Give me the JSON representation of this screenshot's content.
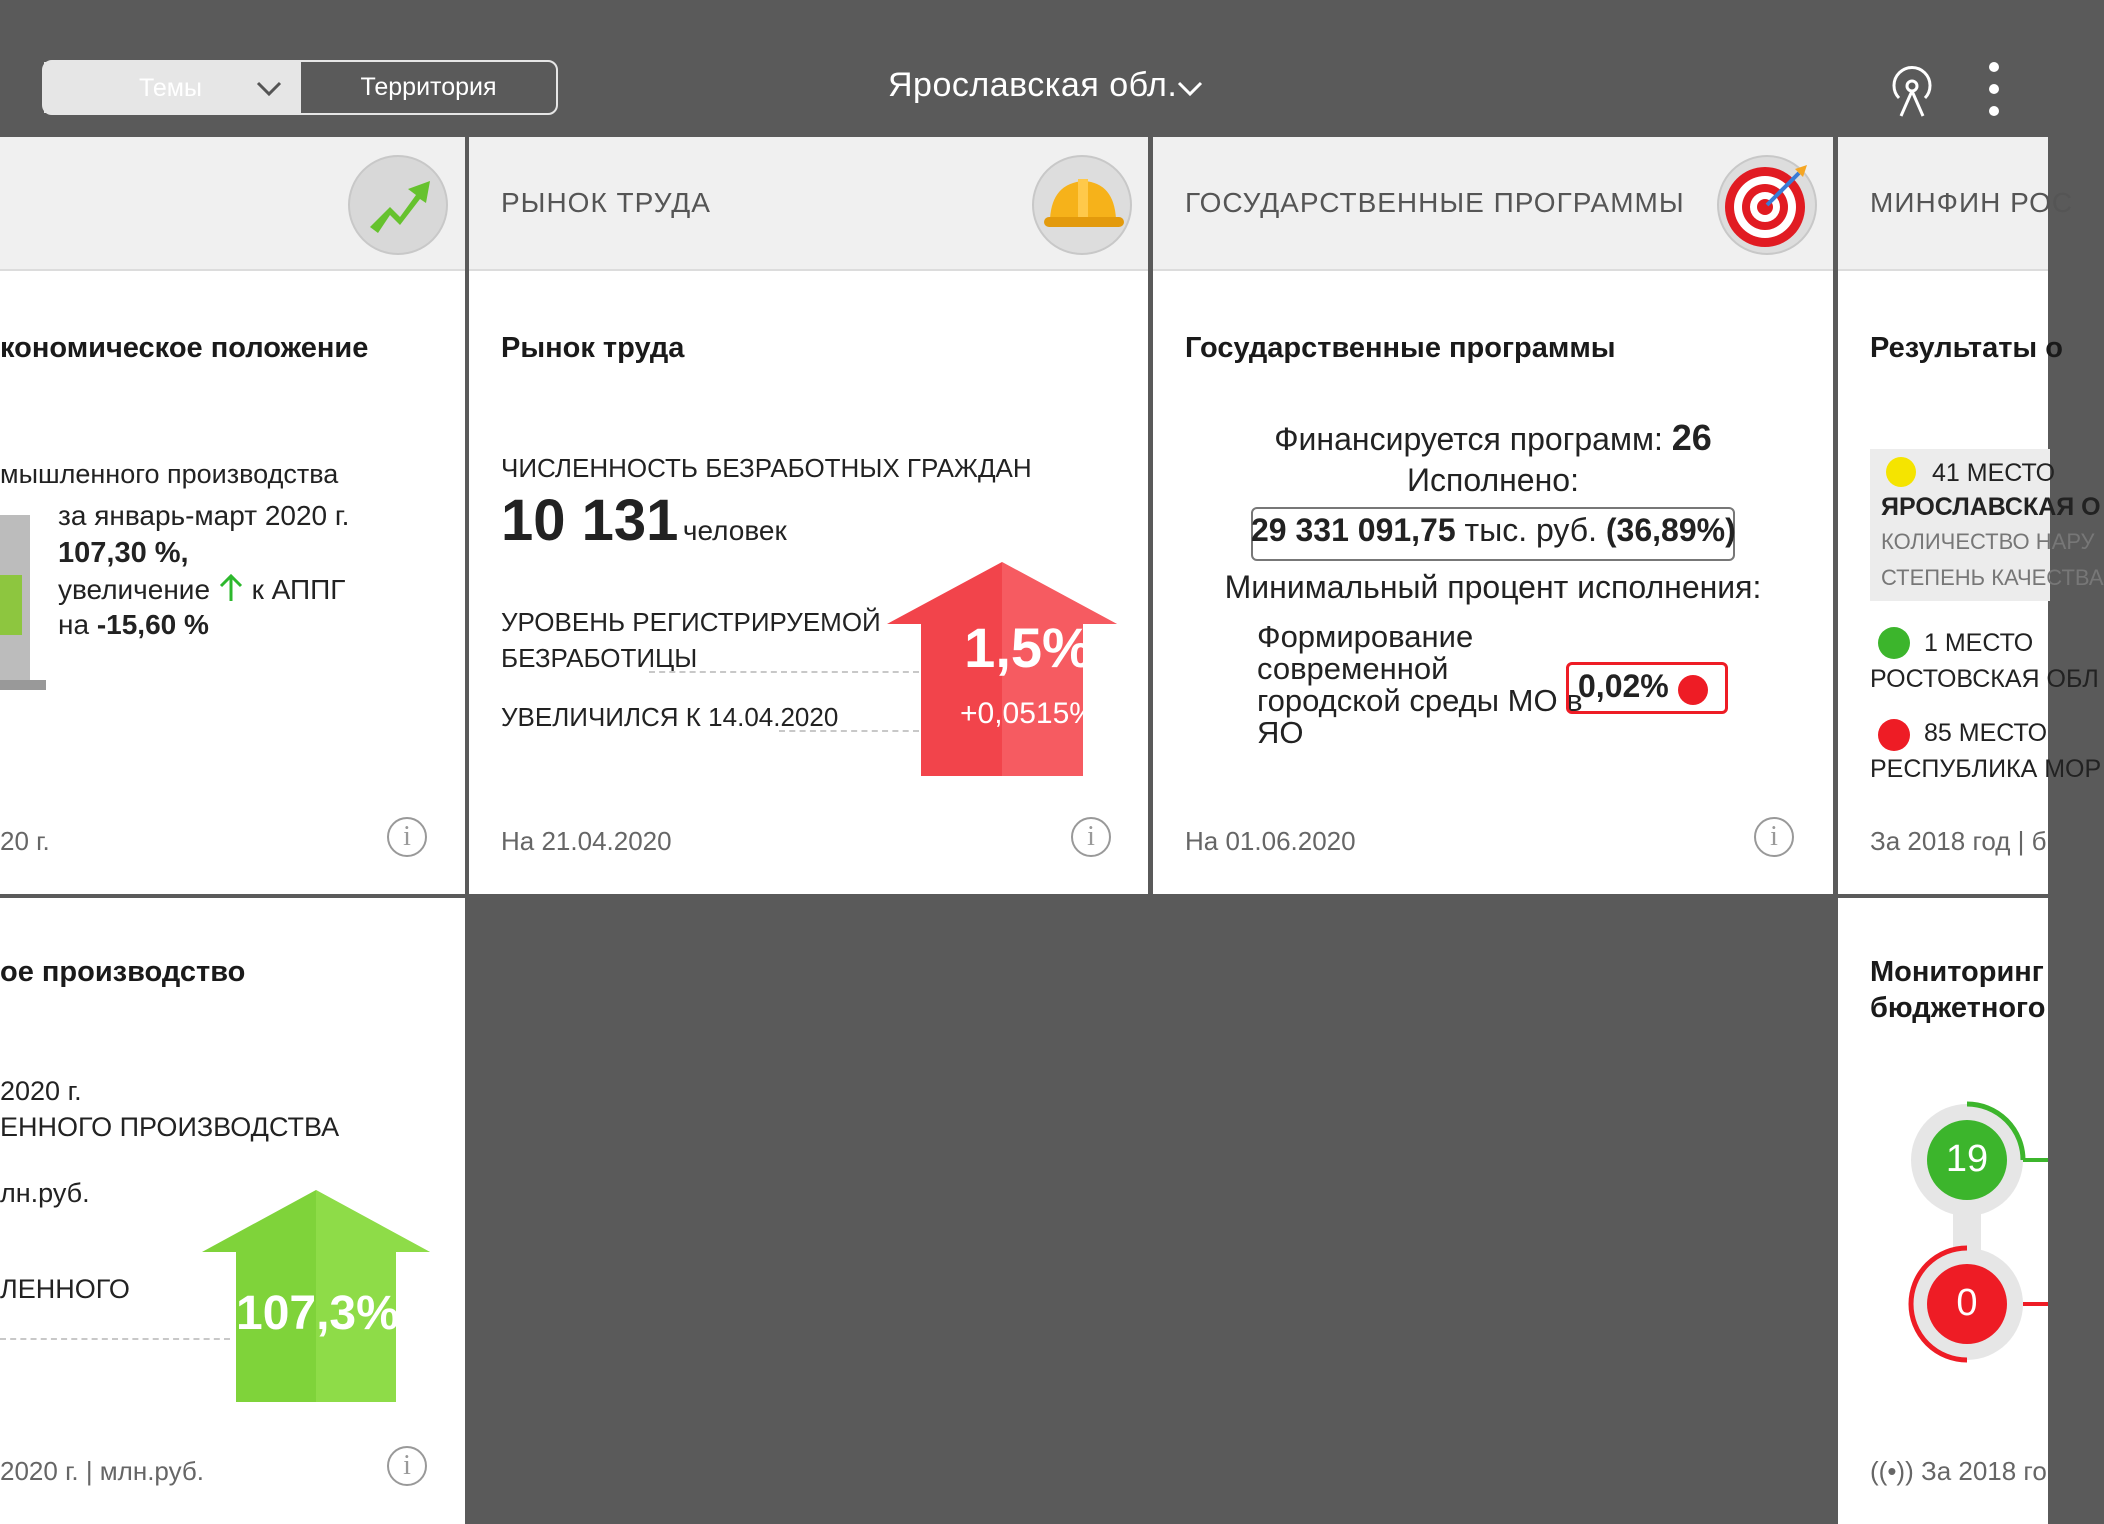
{
  "topbar": {
    "tab_themes": "Темы",
    "tab_territory": "Территория",
    "region": "Ярославская обл."
  },
  "card_economy": {
    "title": "кономическое положение",
    "subtitle": "мышленного производства",
    "period": "за январь-март 2020 г.",
    "value": "107,30 %,",
    "change_prefix": "увеличение",
    "change_suffix": "к АППГ",
    "delta_prefix": "на",
    "delta": "-15,60 %",
    "footer": "20 г."
  },
  "card_labor": {
    "header": "РЫНОК ТРУДА",
    "title": "Рынок труда",
    "metric_label": "ЧИСЛЕННОСТЬ БЕЗРАБОТНЫХ ГРАЖДАН",
    "metric_value": "10 131",
    "metric_unit": "человек",
    "rate_label_1": "УРОВЕНЬ РЕГИСТРИРУЕМОЙ",
    "rate_label_2": "БЕЗРАБОТИЦЫ",
    "rate_change_label": "УВЕЛИЧИЛСЯ К 14.04.2020",
    "arrow_value": "1,5%",
    "arrow_delta": "+0,0515%",
    "footer": "На 21.04.2020"
  },
  "card_programs": {
    "header": "ГОСУДАРСТВЕННЫЕ ПРОГРАММЫ",
    "title": "Государственные программы",
    "funded_label": "Финансируется программ:",
    "funded_count": "26",
    "executed_label": "Исполнено:",
    "executed_amount": "29 331 091,75",
    "executed_unit": "тыс. руб.",
    "executed_pct": "(36,89%)",
    "min_label": "Минимальный процент исполнения:",
    "min_program_1": "Формирование",
    "min_program_2": "современной",
    "min_program_3": "городской среды МО в",
    "min_program_4": "ЯО",
    "min_value": "0,02%",
    "footer": "На 01.06.2020",
    "status_red": "#ee1c25"
  },
  "card_minfin": {
    "header": "МИНФИН РОС",
    "title": "Результаты о",
    "rank1_place": "41 МЕСТО",
    "rank1_region": "ЯРОСЛАВСКАЯ О",
    "rank1_line1": "КОЛИЧЕСТВО НАРУ",
    "rank1_line2": "СТЕПЕНЬ КАЧЕСТВА",
    "rank2_place": "1 МЕСТО",
    "rank2_region": "РОСТОВСКАЯ ОБЛ",
    "rank3_place": "85 МЕСТО",
    "rank3_region": "РЕСПУБЛИКА МОР",
    "footer": "За 2018 год | б"
  },
  "card_industry": {
    "title": "ое производство",
    "line1": "2020 г.",
    "line2": "ЕННОГО ПРОИЗВОДСТВА",
    "line3": "лн.руб.",
    "line4": "ЛЕННОГО",
    "arrow_value": "107,3%",
    "footer": "2020 г. | млн.руб."
  },
  "card_monitoring": {
    "title_1": "Мониторинг",
    "title_2": "бюджетного",
    "green_count": "19",
    "red_count": "0",
    "footer": "За 2018 го"
  },
  "colors": {
    "arrow_red": "#f2444b",
    "arrow_green": "#7fd33a",
    "yellow": "#f5e400",
    "green": "#3cb52c",
    "red": "#ee1c25"
  }
}
